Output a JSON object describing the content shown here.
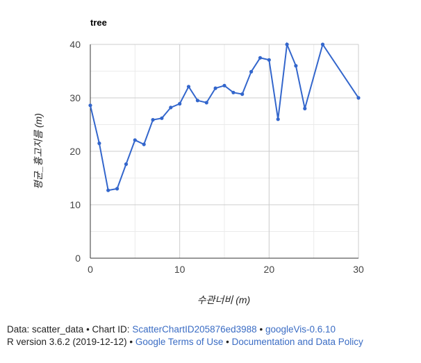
{
  "chart_data": {
    "type": "line",
    "title": "tree",
    "xlabel": "수관너비 (m)",
    "ylabel": "평균_흉고지름 (m)",
    "xlim": [
      0,
      30
    ],
    "ylim": [
      0,
      40
    ],
    "xticks": [
      "0",
      "10",
      "20",
      "30"
    ],
    "yticks": [
      "0",
      "10",
      "20",
      "30",
      "40"
    ],
    "grid": true,
    "legend": "none",
    "line_color": "#3366cc",
    "x": [
      0,
      1,
      2,
      3,
      4,
      5,
      6,
      7,
      8,
      9,
      10,
      11,
      12,
      13,
      14,
      15,
      16,
      17,
      18,
      19,
      20,
      21,
      22,
      23,
      24,
      26,
      30
    ],
    "y": [
      28.6,
      21.5,
      12.7,
      13.0,
      17.6,
      22.1,
      21.3,
      25.9,
      26.2,
      28.2,
      28.9,
      32.1,
      29.5,
      29.1,
      31.8,
      32.3,
      31.0,
      30.7,
      34.9,
      37.5,
      37.1,
      26.0,
      40.0,
      36.0,
      28.0,
      40.0,
      30.0
    ]
  },
  "footer": {
    "line1_prefix": "Data: scatter_data • Chart ID: ",
    "chart_id_link": "ScatterChartID205876ed3988",
    "line1_sep": " • ",
    "googlevis_link": "googleVis-0.6.10",
    "line2_prefix": "R version 3.6.2 (2019-12-12) • ",
    "terms_link": "Google Terms of Use",
    "line2_sep": " • ",
    "docs_link": "Documentation and Data Policy"
  }
}
